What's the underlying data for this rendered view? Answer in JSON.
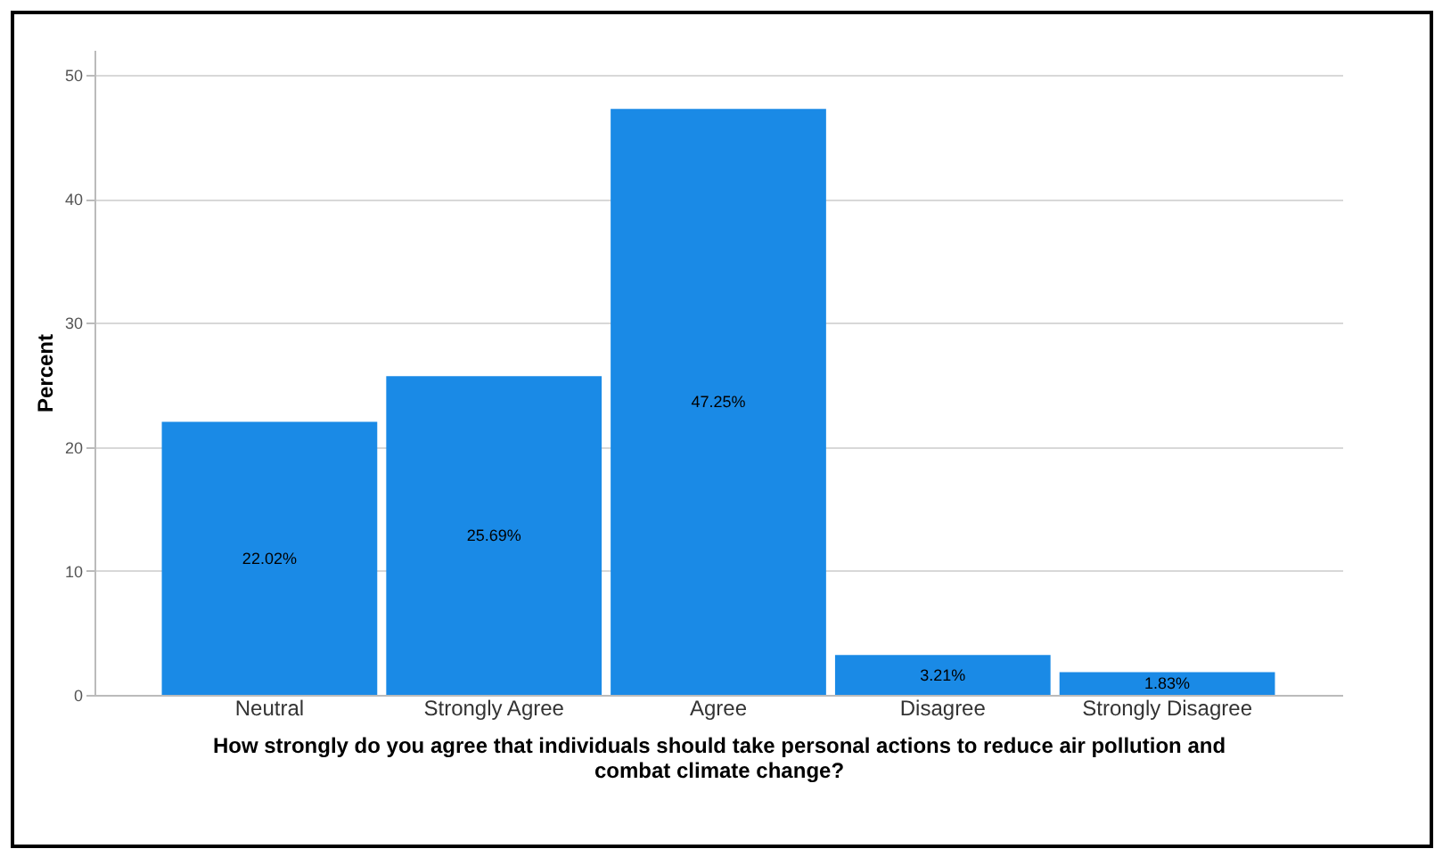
{
  "chart_data": {
    "type": "bar",
    "xlabel": "How strongly do you agree that individuals should take personal actions to reduce air pollution and combat climate change?",
    "ylabel": "Percent",
    "categories": [
      "Neutral",
      "Strongly Agree",
      "Agree",
      "Disagree",
      "Strongly Disagree"
    ],
    "values": [
      22.02,
      25.69,
      47.25,
      3.21,
      1.83
    ],
    "value_labels": [
      "22.02%",
      "25.69%",
      "47.25%",
      "3.21%",
      "1.83%"
    ],
    "color": "#1a8ae6",
    "ylim": [
      0,
      52
    ],
    "yticks": [
      0,
      10,
      20,
      30,
      40,
      50
    ],
    "grid": "y"
  }
}
